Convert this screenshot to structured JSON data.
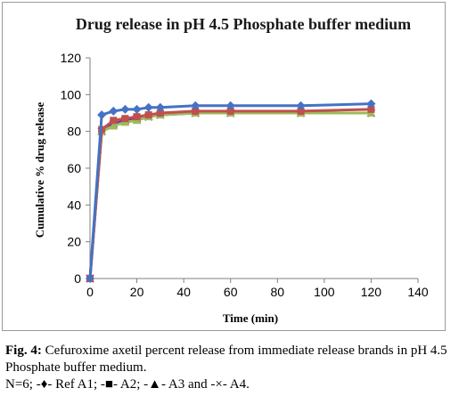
{
  "chart_data": {
    "type": "line",
    "title": "Drug release in pH 4.5 Phosphate buffer medium",
    "xlabel": "Time (min)",
    "ylabel": "Cumulative % drug release",
    "xlim": [
      0,
      140
    ],
    "ylim": [
      0,
      120
    ],
    "xticks": [
      "0",
      "20",
      "40",
      "60",
      "80",
      "100",
      "120",
      "140"
    ],
    "yticks": [
      "0",
      "20",
      "40",
      "60",
      "80",
      "100",
      "120"
    ],
    "grid": false,
    "legend": "none",
    "x": [
      0,
      5,
      10,
      15,
      20,
      25,
      30,
      45,
      60,
      90,
      120
    ],
    "series": [
      {
        "color": "#4472c4",
        "marker": "diamond",
        "values": [
          0,
          89,
          91,
          92,
          92,
          93,
          93,
          94,
          94,
          94,
          95
        ]
      },
      {
        "color": "#c0504d",
        "marker": "square",
        "values": [
          0,
          81,
          86,
          87,
          88,
          89,
          90,
          91,
          91,
          91,
          92
        ]
      },
      {
        "color": "#9bbb59",
        "marker": "triangle",
        "values": [
          0,
          80,
          83,
          85,
          86,
          88,
          89,
          90,
          90,
          90,
          90
        ]
      },
      {
        "color": "#7030a0",
        "marker": "x",
        "values": [
          0,
          80,
          84,
          86,
          87,
          88,
          89,
          90,
          90,
          90,
          90
        ]
      }
    ]
  },
  "caption": {
    "fig_label": "Fig. 4:",
    "text_line1": " Cefuroxime axetil percent release from immediate release brands in pH 4.5 Phosphate buffer medium.",
    "text_line2": "N=6; -♦- Ref A1; -■- A2; -▲- A3 and -×- A4."
  }
}
